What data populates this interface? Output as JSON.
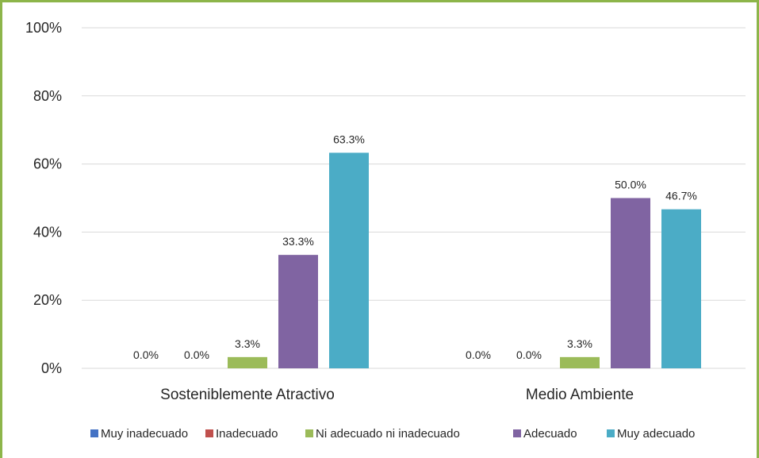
{
  "colors": {
    "frame": "#8db54a",
    "gridline": "#d9d9d9",
    "text": "#262626"
  },
  "chart_data": {
    "type": "bar",
    "categories": [
      "Sostenible­mente Atractivo",
      "Medio Ambiente"
    ],
    "ylim": [
      0,
      100
    ],
    "yticks": [
      "0%",
      "20%",
      "40%",
      "60%",
      "80%",
      "100%"
    ],
    "grid": true,
    "legend_position": "bottom",
    "series": [
      {
        "name": "Muy inadecuado",
        "color": "#4472c4",
        "values": [
          0.0,
          0.0
        ],
        "labels": [
          "0.0%",
          "0.0%"
        ]
      },
      {
        "name": "Inadecuado",
        "color": "#c0504d",
        "values": [
          0.0,
          0.0
        ],
        "labels": [
          "0.0%",
          "0.0%"
        ]
      },
      {
        "name": "Ni adecuado ni inadecuado",
        "color": "#9bbb59",
        "values": [
          3.3,
          3.3
        ],
        "labels": [
          "3.3%",
          "3.3%"
        ]
      },
      {
        "name": "Adecuado",
        "color": "#8064a2",
        "values": [
          33.3,
          50.0
        ],
        "labels": [
          "33.3%",
          "50.0%"
        ]
      },
      {
        "name": "Muy adecuado",
        "color": "#4bacc6",
        "values": [
          63.3,
          46.7
        ],
        "labels": [
          "63.3%",
          "46.7%"
        ]
      }
    ]
  }
}
